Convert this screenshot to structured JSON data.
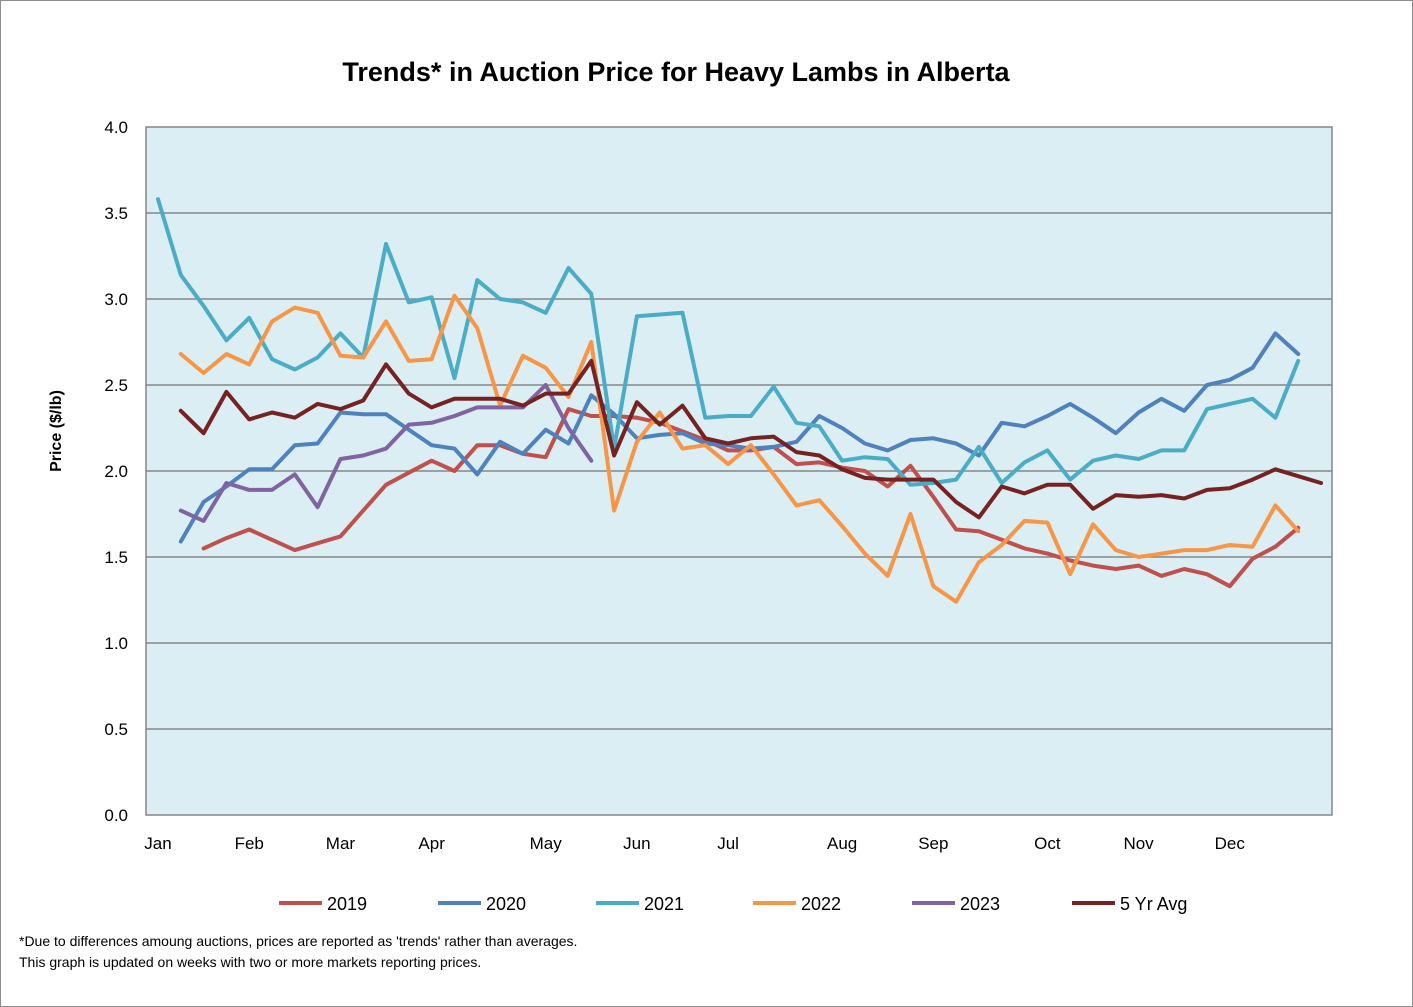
{
  "footnotes": [
    "*Due to differences amoung auctions, prices are reported as 'trends' rather than averages.",
    "This graph is updated on weeks with two or more markets reporting prices."
  ],
  "chart_data": {
    "type": "line",
    "title": "Trends* in Auction Price for Heavy Lambs in Alberta",
    "ylabel": "Price ($/lb)",
    "xlabel": "",
    "ylim": [
      0,
      4
    ],
    "yticks": [
      "0.0",
      "0.5",
      "1.0",
      "1.5",
      "2.0",
      "2.5",
      "3.0",
      "3.5",
      "4.0"
    ],
    "xlim": [
      1,
      52
    ],
    "month_labels": [
      {
        "label": "Jan",
        "week": 1
      },
      {
        "label": "Feb",
        "week": 5
      },
      {
        "label": "Mar",
        "week": 9
      },
      {
        "label": "Apr",
        "week": 13
      },
      {
        "label": "May",
        "week": 18
      },
      {
        "label": "Jun",
        "week": 22
      },
      {
        "label": "Jul",
        "week": 26
      },
      {
        "label": "Aug",
        "week": 31
      },
      {
        "label": "Sep",
        "week": 35
      },
      {
        "label": "Oct",
        "week": 40
      },
      {
        "label": "Nov",
        "week": 44
      },
      {
        "label": "Dec",
        "week": 48
      }
    ],
    "grid": true,
    "legend_position": "bottom",
    "plot_background": "#dbeef4",
    "series": [
      {
        "name": "2019",
        "color": "#c0504d",
        "points": [
          [
            3,
            1.55
          ],
          [
            4,
            1.61
          ],
          [
            5,
            1.66
          ],
          [
            6,
            1.6
          ],
          [
            7,
            1.54
          ],
          [
            8,
            1.58
          ],
          [
            9,
            1.62
          ],
          [
            10,
            1.77
          ],
          [
            11,
            1.92
          ],
          [
            12,
            1.99
          ],
          [
            13,
            2.06
          ],
          [
            14,
            2.0
          ],
          [
            15,
            2.15
          ],
          [
            16,
            2.15
          ],
          [
            17,
            2.1
          ],
          [
            18,
            2.08
          ],
          [
            19,
            2.36
          ],
          [
            20,
            2.32
          ],
          [
            21,
            2.32
          ],
          [
            22,
            2.31
          ],
          [
            23,
            2.28
          ],
          [
            24,
            2.23
          ],
          [
            25,
            2.18
          ],
          [
            26,
            2.12
          ],
          [
            27,
            2.12
          ],
          [
            28,
            2.14
          ],
          [
            29,
            2.04
          ],
          [
            30,
            2.05
          ],
          [
            31,
            2.02
          ],
          [
            32,
            2.0
          ],
          [
            33,
            1.91
          ],
          [
            34,
            2.03
          ],
          [
            35,
            1.85
          ],
          [
            36,
            1.66
          ],
          [
            37,
            1.65
          ],
          [
            38,
            1.6
          ],
          [
            39,
            1.55
          ],
          [
            40,
            1.52
          ],
          [
            41,
            1.48
          ],
          [
            42,
            1.45
          ],
          [
            43,
            1.43
          ],
          [
            44,
            1.45
          ],
          [
            45,
            1.39
          ],
          [
            46,
            1.43
          ],
          [
            47,
            1.4
          ],
          [
            48,
            1.33
          ],
          [
            49,
            1.49
          ],
          [
            50,
            1.56
          ],
          [
            51,
            1.67
          ]
        ]
      },
      {
        "name": "2020",
        "color": "#4f81bd",
        "points": [
          [
            2,
            1.59
          ],
          [
            3,
            1.82
          ],
          [
            4,
            1.91
          ],
          [
            5,
            2.01
          ],
          [
            6,
            2.01
          ],
          [
            7,
            2.15
          ],
          [
            8,
            2.16
          ],
          [
            9,
            2.34
          ],
          [
            10,
            2.33
          ],
          [
            11,
            2.33
          ],
          [
            12,
            2.24
          ],
          [
            13,
            2.15
          ],
          [
            14,
            2.13
          ],
          [
            15,
            1.98
          ],
          [
            16,
            2.17
          ],
          [
            17,
            2.1
          ],
          [
            18,
            2.24
          ],
          [
            19,
            2.16
          ],
          [
            20,
            2.44
          ],
          [
            21,
            2.33
          ],
          [
            22,
            2.19
          ],
          [
            23,
            2.21
          ],
          [
            24,
            2.22
          ],
          [
            25,
            2.16
          ],
          [
            26,
            2.15
          ],
          [
            27,
            2.13
          ],
          [
            28,
            2.14
          ],
          [
            29,
            2.17
          ],
          [
            30,
            2.32
          ],
          [
            31,
            2.25
          ],
          [
            32,
            2.16
          ],
          [
            33,
            2.12
          ],
          [
            34,
            2.18
          ],
          [
            35,
            2.19
          ],
          [
            36,
            2.16
          ],
          [
            37,
            2.09
          ],
          [
            38,
            2.28
          ],
          [
            39,
            2.26
          ],
          [
            40,
            2.32
          ],
          [
            41,
            2.39
          ],
          [
            42,
            2.31
          ],
          [
            43,
            2.22
          ],
          [
            44,
            2.34
          ],
          [
            45,
            2.42
          ],
          [
            46,
            2.35
          ],
          [
            47,
            2.5
          ],
          [
            48,
            2.53
          ],
          [
            49,
            2.6
          ],
          [
            50,
            2.8
          ],
          [
            51,
            2.68
          ]
        ]
      },
      {
        "name": "2021",
        "color": "#4bacc6",
        "points": [
          [
            1,
            3.58
          ],
          [
            2,
            3.14
          ],
          [
            3,
            2.96
          ],
          [
            4,
            2.76
          ],
          [
            5,
            2.89
          ],
          [
            6,
            2.65
          ],
          [
            7,
            2.59
          ],
          [
            8,
            2.66
          ],
          [
            9,
            2.8
          ],
          [
            10,
            2.66
          ],
          [
            11,
            3.32
          ],
          [
            12,
            2.98
          ],
          [
            13,
            3.01
          ],
          [
            14,
            2.54
          ],
          [
            15,
            3.11
          ],
          [
            16,
            3.0
          ],
          [
            17,
            2.98
          ],
          [
            18,
            2.92
          ],
          [
            19,
            3.18
          ],
          [
            20,
            3.03
          ],
          [
            21,
            2.13
          ],
          [
            22,
            2.9
          ],
          [
            23,
            2.91
          ],
          [
            24,
            2.92
          ],
          [
            25,
            2.31
          ],
          [
            26,
            2.32
          ],
          [
            27,
            2.32
          ],
          [
            28,
            2.49
          ],
          [
            29,
            2.28
          ],
          [
            30,
            2.26
          ],
          [
            31,
            2.06
          ],
          [
            32,
            2.08
          ],
          [
            33,
            2.07
          ],
          [
            34,
            1.92
          ],
          [
            35,
            1.93
          ],
          [
            36,
            1.95
          ],
          [
            37,
            2.14
          ],
          [
            38,
            1.93
          ],
          [
            39,
            2.05
          ],
          [
            40,
            2.12
          ],
          [
            41,
            1.95
          ],
          [
            42,
            2.06
          ],
          [
            43,
            2.09
          ],
          [
            44,
            2.07
          ],
          [
            45,
            2.12
          ],
          [
            46,
            2.12
          ],
          [
            47,
            2.36
          ],
          [
            48,
            2.39
          ],
          [
            49,
            2.42
          ],
          [
            50,
            2.31
          ],
          [
            51,
            2.64
          ]
        ]
      },
      {
        "name": "2022",
        "color": "#f79646",
        "points": [
          [
            2,
            2.68
          ],
          [
            3,
            2.57
          ],
          [
            4,
            2.68
          ],
          [
            5,
            2.62
          ],
          [
            6,
            2.87
          ],
          [
            7,
            2.95
          ],
          [
            8,
            2.92
          ],
          [
            9,
            2.67
          ],
          [
            10,
            2.66
          ],
          [
            11,
            2.87
          ],
          [
            12,
            2.64
          ],
          [
            13,
            2.65
          ],
          [
            14,
            3.02
          ],
          [
            15,
            2.83
          ],
          [
            16,
            2.38
          ],
          [
            17,
            2.67
          ],
          [
            18,
            2.6
          ],
          [
            19,
            2.43
          ],
          [
            20,
            2.75
          ],
          [
            21,
            1.77
          ],
          [
            22,
            2.17
          ],
          [
            23,
            2.34
          ],
          [
            24,
            2.13
          ],
          [
            25,
            2.15
          ],
          [
            26,
            2.04
          ],
          [
            27,
            2.15
          ],
          [
            28,
            1.98
          ],
          [
            29,
            1.8
          ],
          [
            30,
            1.83
          ],
          [
            31,
            1.68
          ],
          [
            32,
            1.52
          ],
          [
            33,
            1.39
          ],
          [
            34,
            1.75
          ],
          [
            35,
            1.33
          ],
          [
            36,
            1.24
          ],
          [
            37,
            1.47
          ],
          [
            38,
            1.57
          ],
          [
            39,
            1.71
          ],
          [
            40,
            1.7
          ],
          [
            41,
            1.4
          ],
          [
            42,
            1.69
          ],
          [
            43,
            1.54
          ],
          [
            44,
            1.5
          ],
          [
            45,
            1.52
          ],
          [
            46,
            1.54
          ],
          [
            47,
            1.54
          ],
          [
            48,
            1.57
          ],
          [
            49,
            1.56
          ],
          [
            50,
            1.8
          ],
          [
            51,
            1.65
          ]
        ]
      },
      {
        "name": "2023",
        "color": "#8064a2",
        "points": [
          [
            2,
            1.77
          ],
          [
            3,
            1.71
          ],
          [
            4,
            1.93
          ],
          [
            5,
            1.89
          ],
          [
            6,
            1.89
          ],
          [
            7,
            1.98
          ],
          [
            8,
            1.79
          ],
          [
            9,
            2.07
          ],
          [
            10,
            2.09
          ],
          [
            11,
            2.13
          ],
          [
            12,
            2.27
          ],
          [
            13,
            2.28
          ],
          [
            14,
            2.32
          ],
          [
            15,
            2.37
          ],
          [
            16,
            2.37
          ],
          [
            17,
            2.37
          ],
          [
            18,
            2.5
          ],
          [
            19,
            2.25
          ],
          [
            20,
            2.06
          ]
        ]
      },
      {
        "name": "5 Yr Avg",
        "color": "#772222",
        "points": [
          [
            2,
            2.35
          ],
          [
            3,
            2.22
          ],
          [
            4,
            2.46
          ],
          [
            5,
            2.3
          ],
          [
            6,
            2.34
          ],
          [
            7,
            2.31
          ],
          [
            8,
            2.39
          ],
          [
            9,
            2.36
          ],
          [
            10,
            2.41
          ],
          [
            11,
            2.62
          ],
          [
            12,
            2.45
          ],
          [
            13,
            2.37
          ],
          [
            14,
            2.42
          ],
          [
            15,
            2.42
          ],
          [
            16,
            2.42
          ],
          [
            17,
            2.38
          ],
          [
            18,
            2.45
          ],
          [
            19,
            2.45
          ],
          [
            20,
            2.64
          ],
          [
            21,
            2.09
          ],
          [
            22,
            2.4
          ],
          [
            23,
            2.27
          ],
          [
            24,
            2.38
          ],
          [
            25,
            2.19
          ],
          [
            26,
            2.16
          ],
          [
            27,
            2.19
          ],
          [
            28,
            2.2
          ],
          [
            29,
            2.11
          ],
          [
            30,
            2.09
          ],
          [
            31,
            2.01
          ],
          [
            32,
            1.96
          ],
          [
            33,
            1.95
          ],
          [
            34,
            1.95
          ],
          [
            35,
            1.95
          ],
          [
            36,
            1.82
          ],
          [
            37,
            1.73
          ],
          [
            38,
            1.91
          ],
          [
            39,
            1.87
          ],
          [
            40,
            1.92
          ],
          [
            41,
            1.92
          ],
          [
            42,
            1.78
          ],
          [
            43,
            1.86
          ],
          [
            44,
            1.85
          ],
          [
            45,
            1.86
          ],
          [
            46,
            1.84
          ],
          [
            47,
            1.89
          ],
          [
            48,
            1.9
          ],
          [
            49,
            1.95
          ],
          [
            50,
            2.01
          ],
          [
            51,
            1.97
          ],
          [
            52,
            1.93
          ]
        ]
      }
    ]
  }
}
